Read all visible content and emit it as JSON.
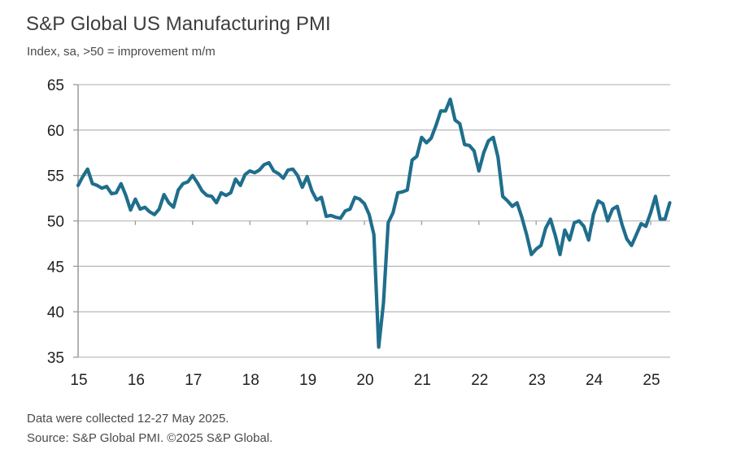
{
  "header": {
    "title": "S&P Global US Manufacturing PMI",
    "subtitle": "Index, sa, >50 = improvement m/m"
  },
  "footer": {
    "note": "Data were collected 12-27 May 2025.",
    "source": "Source: S&P Global PMI. ©2025 S&P Global."
  },
  "colors": {
    "line": "#1f6e8c",
    "grid": "#bdbdbd",
    "axis": "#9a9a9a"
  },
  "chart_data": {
    "type": "line",
    "title": "S&P Global US Manufacturing PMI",
    "subtitle": "Index, sa, >50 = improvement m/m",
    "xlabel": "",
    "ylabel": "",
    "frequency": "monthly",
    "x_start": "2015-01",
    "x_end": "2025-05",
    "ylim": [
      35,
      65
    ],
    "yticks": [
      35,
      40,
      45,
      50,
      55,
      60,
      65
    ],
    "xticks": [
      "15",
      "16",
      "17",
      "18",
      "19",
      "20",
      "21",
      "22",
      "23",
      "24",
      "25"
    ],
    "x_axis_crosses_at": 50,
    "grid": "horizontal",
    "legend": "none",
    "series": [
      {
        "name": "US Manufacturing PMI",
        "values": [
          53.9,
          54.9,
          55.7,
          54.1,
          53.9,
          53.6,
          53.8,
          53.0,
          53.1,
          54.1,
          52.8,
          51.2,
          52.4,
          51.3,
          51.5,
          51.0,
          50.7,
          51.3,
          52.9,
          52.0,
          51.5,
          53.4,
          54.1,
          54.3,
          55.0,
          54.2,
          53.3,
          52.8,
          52.7,
          52.0,
          53.1,
          52.8,
          53.1,
          54.6,
          53.9,
          55.1,
          55.5,
          55.3,
          55.6,
          56.2,
          56.4,
          55.5,
          55.2,
          54.7,
          55.6,
          55.7,
          55.0,
          53.7,
          54.9,
          53.3,
          52.3,
          52.6,
          50.5,
          50.6,
          50.4,
          50.3,
          51.1,
          51.3,
          52.6,
          52.4,
          51.9,
          50.7,
          48.5,
          36.1,
          41.0,
          49.8,
          50.9,
          53.1,
          53.2,
          53.4,
          56.7,
          57.1,
          59.2,
          58.6,
          59.1,
          60.5,
          62.1,
          62.1,
          63.4,
          61.1,
          60.7,
          58.4,
          58.3,
          57.7,
          55.5,
          57.5,
          58.8,
          59.2,
          57.0,
          52.7,
          52.2,
          51.6,
          52.0,
          50.4,
          48.5,
          46.3,
          46.9,
          47.3,
          49.2,
          50.2,
          48.4,
          46.3,
          49.0,
          47.9,
          49.8,
          50.0,
          49.4,
          47.9,
          50.7,
          52.2,
          51.9,
          50.0,
          51.3,
          51.6,
          49.6,
          48.0,
          47.3,
          48.5,
          49.7,
          49.4,
          50.9,
          52.7,
          50.2,
          50.2,
          52.0
        ]
      }
    ]
  }
}
